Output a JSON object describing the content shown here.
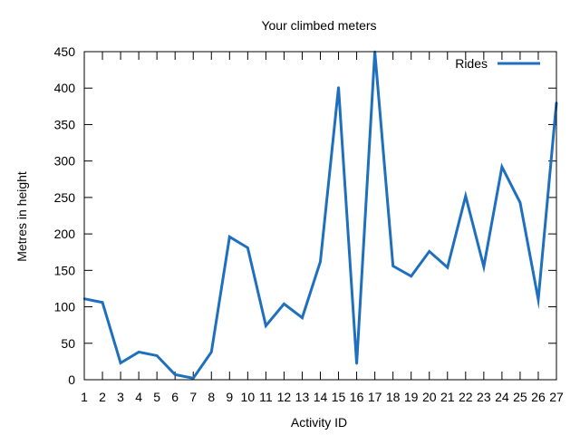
{
  "chart_data": {
    "type": "line",
    "title": "Your climbed meters",
    "xlabel": "Activity ID",
    "ylabel": "Metres in height",
    "x": [
      1,
      2,
      3,
      4,
      5,
      6,
      7,
      8,
      9,
      10,
      11,
      12,
      13,
      14,
      15,
      16,
      17,
      18,
      19,
      20,
      21,
      22,
      23,
      24,
      25,
      26,
      27
    ],
    "xlim": [
      1,
      27
    ],
    "ylim": [
      0,
      450
    ],
    "yticks": [
      0,
      50,
      100,
      150,
      200,
      250,
      300,
      350,
      400,
      450
    ],
    "xticks": [
      1,
      2,
      3,
      4,
      5,
      6,
      7,
      8,
      9,
      10,
      11,
      12,
      13,
      14,
      15,
      16,
      17,
      18,
      19,
      20,
      21,
      22,
      23,
      24,
      25,
      26,
      27
    ],
    "grid": false,
    "legend_position": "top-right",
    "series": [
      {
        "name": "Rides",
        "color": "#1f6fbf",
        "values": [
          111,
          106,
          23,
          38,
          33,
          7,
          2,
          38,
          196,
          181,
          74,
          104,
          85,
          162,
          401,
          22,
          450,
          156,
          142,
          176,
          154,
          252,
          155,
          292,
          243,
          110,
          380
        ]
      }
    ]
  }
}
